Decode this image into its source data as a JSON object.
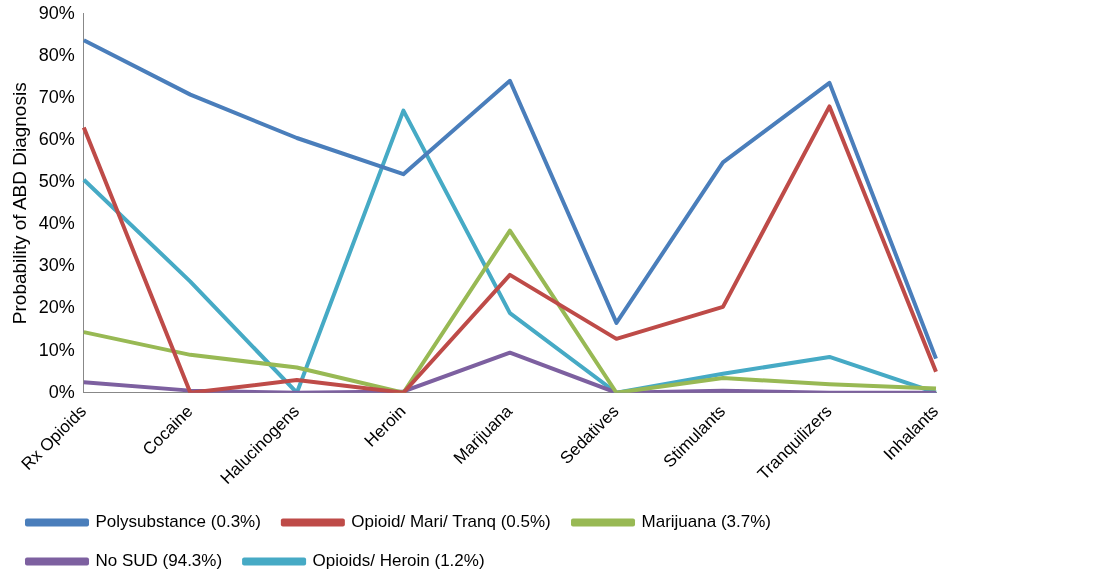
{
  "chart_data": {
    "type": "line",
    "ylabel": "Probability of ABD Diagnosis",
    "categories": [
      "Rx Opioids",
      "Cocaine",
      "Halucinogens",
      "Heroin",
      "Marijuana",
      "Sedatives",
      "Stimulants",
      "Tranquilizers",
      "Inhalants"
    ],
    "series": [
      {
        "name": "Polysubstance (0.3%)",
        "color": "#4a7ebb",
        "values": [
          83.7,
          70.8,
          60.5,
          51.9,
          74.1,
          16.6,
          54.7,
          73.6,
          8.1
        ]
      },
      {
        "name": "Opioid/ Mari/ Tranq (0.5%)",
        "color": "#be4b48",
        "values": [
          63,
          0,
          3,
          0,
          28,
          12.8,
          20.4,
          68,
          5
        ]
      },
      {
        "name": "Marijuana (3.7%)",
        "color": "#98b954",
        "values": [
          14.4,
          9,
          6,
          0,
          38.5,
          0,
          3.5,
          2,
          1
        ]
      },
      {
        "name": "No SUD (94.3%)",
        "color": "#7d60a0",
        "values": [
          2.5,
          0.5,
          0,
          0.3,
          9.5,
          0,
          0.5,
          0,
          0
        ]
      },
      {
        "name": "Opioids/ Heroin (1.2%)",
        "color": "#46aac5",
        "values": [
          50.6,
          26.4,
          0,
          67,
          18.9,
          0,
          4.5,
          8.5,
          0
        ]
      }
    ],
    "ylim": [
      0,
      90
    ],
    "yticks": [
      {
        "value": 0,
        "label": "0%"
      },
      {
        "value": 10,
        "label": "10%"
      },
      {
        "value": 20,
        "label": "20%"
      },
      {
        "value": 30,
        "label": "30%"
      },
      {
        "value": 40,
        "label": "40%"
      },
      {
        "value": 50,
        "label": "50%"
      },
      {
        "value": 60,
        "label": "60%"
      },
      {
        "value": 70,
        "label": "70%"
      },
      {
        "value": 80,
        "label": "80%"
      },
      {
        "value": 90,
        "label": "90%"
      }
    ],
    "grid": false,
    "legend": "bottom",
    "marker": "none",
    "line_style": "solid"
  }
}
